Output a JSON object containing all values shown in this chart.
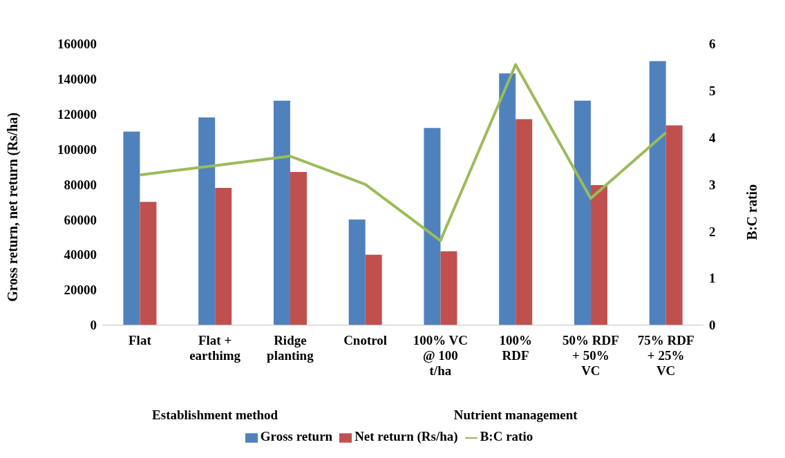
{
  "chart_data": {
    "type": "bar",
    "ylabel": "Gross return, net return (Rs/ha)",
    "y2label": "B:C ratio",
    "categories": [
      "Flat",
      "Flat + earthimg",
      "Ridge planting",
      "Cnotrol",
      "100% VC @ 100 t/ha",
      "100% RDF",
      "50% RDF + 50% VC",
      "75% RDF + 25% VC"
    ],
    "series": [
      {
        "name": "Gross return",
        "color": "#4f81bd",
        "values": [
          110000,
          118000,
          127500,
          60000,
          112000,
          143000,
          127500,
          150000
        ]
      },
      {
        "name": "Net return (Rs/ha)",
        "color": "#c0504d",
        "values": [
          70000,
          78000,
          87000,
          40000,
          42000,
          117000,
          79500,
          113500
        ]
      },
      {
        "name": "B:C ratio",
        "type": "line",
        "axis": "y2",
        "color": "#9bbb59",
        "marker": "none",
        "values": [
          3.2,
          3.4,
          3.6,
          3.0,
          1.8,
          5.55,
          2.7,
          4.1
        ]
      }
    ],
    "annotations": [
      "Establishment method",
      "Nutrient management"
    ],
    "ylim": [
      0,
      160000
    ],
    "yticks": [
      0,
      20000,
      40000,
      60000,
      80000,
      100000,
      120000,
      140000,
      160000
    ],
    "y2lim": [
      0,
      6
    ],
    "y2ticks": [
      0,
      1,
      2,
      3,
      4,
      5,
      6
    ],
    "legend": "bottom"
  }
}
